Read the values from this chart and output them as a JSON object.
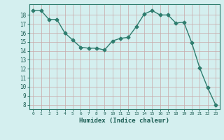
{
  "x": [
    0,
    1,
    2,
    3,
    4,
    5,
    6,
    7,
    8,
    9,
    10,
    11,
    12,
    13,
    14,
    15,
    16,
    17,
    18,
    19,
    20,
    21,
    22,
    23
  ],
  "y": [
    18.5,
    18.5,
    17.5,
    17.5,
    16.0,
    15.2,
    14.4,
    14.3,
    14.3,
    14.1,
    15.1,
    15.4,
    15.5,
    16.7,
    18.1,
    18.5,
    18.0,
    18.0,
    17.1,
    17.2,
    14.9,
    12.1,
    9.9,
    8.0
  ],
  "line_color": "#2e7d6e",
  "marker_color": "#2e7d6e",
  "bg_color": "#d4efef",
  "grid_color": "#c8a8a8",
  "xlabel": "Humidex (Indice chaleur)",
  "ylabel_ticks": [
    8,
    9,
    10,
    11,
    12,
    13,
    14,
    15,
    16,
    17,
    18
  ],
  "ylim": [
    7.5,
    19.2
  ],
  "xlim": [
    -0.5,
    23.5
  ],
  "tick_color": "#1a5c52",
  "label_color": "#1a5c52",
  "spine_color": "#2e7d6e"
}
